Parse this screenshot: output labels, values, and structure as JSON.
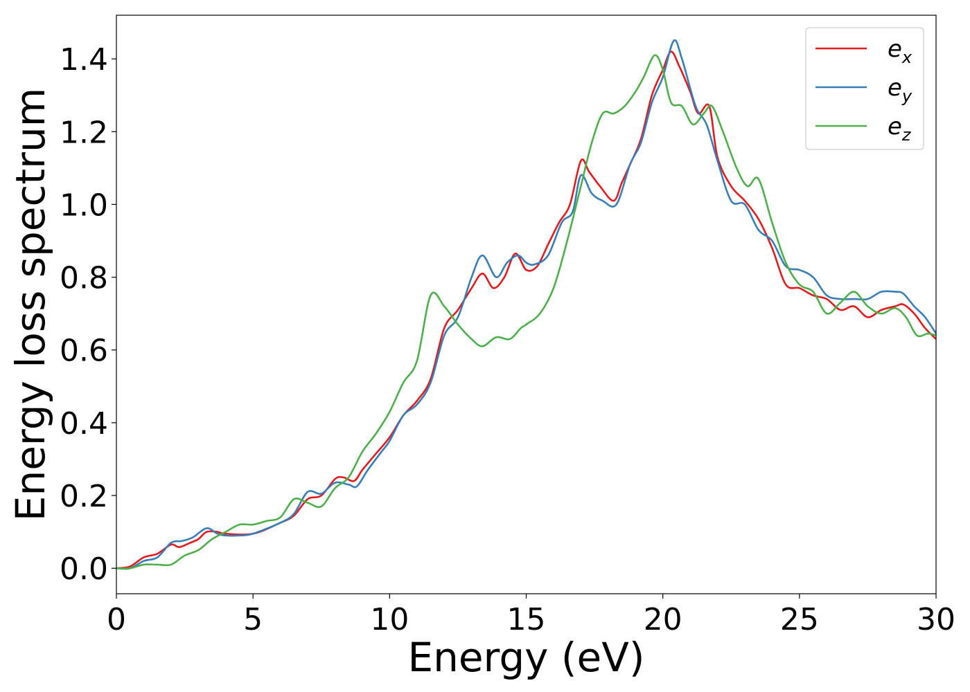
{
  "chart_data": {
    "type": "line",
    "title": "",
    "xlabel": "Energy (eV)",
    "ylabel": "Energy loss spectrum",
    "xlim": [
      0,
      30
    ],
    "ylim": [
      -0.07,
      1.52
    ],
    "xticks": [
      0,
      5,
      10,
      15,
      20,
      25,
      30
    ],
    "yticks": [
      0.0,
      0.2,
      0.4,
      0.6,
      0.8,
      1.0,
      1.2,
      1.4
    ],
    "xtick_labels": [
      "0",
      "5",
      "10",
      "15",
      "20",
      "25",
      "30"
    ],
    "ytick_labels": [
      "0.0",
      "0.2",
      "0.4",
      "0.6",
      "0.8",
      "1.0",
      "1.2",
      "1.4"
    ],
    "grid": false,
    "legend": {
      "placement": "top-right"
    },
    "series": [
      {
        "name": "e_x",
        "label_base": "e",
        "label_sub": "x",
        "color": "#e41a1c",
        "points": [
          [
            0,
            0.0
          ],
          [
            0.5,
            0.005
          ],
          [
            1.0,
            0.03
          ],
          [
            1.5,
            0.04
          ],
          [
            2.0,
            0.065
          ],
          [
            2.3,
            0.058
          ],
          [
            2.7,
            0.07
          ],
          [
            3.0,
            0.08
          ],
          [
            3.3,
            0.1
          ],
          [
            3.7,
            0.1
          ],
          [
            4.0,
            0.095
          ],
          [
            5,
            0.095
          ],
          [
            6,
            0.125
          ],
          [
            6.5,
            0.145
          ],
          [
            7.0,
            0.19
          ],
          [
            7.5,
            0.2
          ],
          [
            8.0,
            0.245
          ],
          [
            8.3,
            0.25
          ],
          [
            8.7,
            0.24
          ],
          [
            9.0,
            0.27
          ],
          [
            9.5,
            0.315
          ],
          [
            10,
            0.36
          ],
          [
            10.5,
            0.42
          ],
          [
            11.0,
            0.46
          ],
          [
            11.5,
            0.52
          ],
          [
            12.0,
            0.66
          ],
          [
            12.5,
            0.71
          ],
          [
            13.0,
            0.77
          ],
          [
            13.4,
            0.81
          ],
          [
            13.8,
            0.77
          ],
          [
            14.2,
            0.8
          ],
          [
            14.6,
            0.865
          ],
          [
            15,
            0.82
          ],
          [
            15.4,
            0.83
          ],
          [
            15.8,
            0.89
          ],
          [
            16.2,
            0.95
          ],
          [
            16.6,
            1.0
          ],
          [
            17.0,
            1.12
          ],
          [
            17.3,
            1.09
          ],
          [
            17.7,
            1.05
          ],
          [
            18.2,
            1.01
          ],
          [
            18.5,
            1.06
          ],
          [
            18.8,
            1.11
          ],
          [
            19.2,
            1.18
          ],
          [
            19.6,
            1.3
          ],
          [
            20.0,
            1.37
          ],
          [
            20.3,
            1.42
          ],
          [
            20.6,
            1.38
          ],
          [
            21.0,
            1.31
          ],
          [
            21.3,
            1.25
          ],
          [
            21.7,
            1.27
          ],
          [
            22.0,
            1.13
          ],
          [
            22.5,
            1.05
          ],
          [
            23.0,
            1.01
          ],
          [
            23.5,
            0.96
          ],
          [
            24.0,
            0.88
          ],
          [
            24.5,
            0.78
          ],
          [
            25.0,
            0.77
          ],
          [
            25.5,
            0.75
          ],
          [
            26.0,
            0.74
          ],
          [
            26.5,
            0.71
          ],
          [
            27.0,
            0.72
          ],
          [
            27.5,
            0.69
          ],
          [
            28.0,
            0.71
          ],
          [
            28.5,
            0.72
          ],
          [
            28.8,
            0.725
          ],
          [
            29.2,
            0.7
          ],
          [
            29.6,
            0.66
          ],
          [
            30.0,
            0.63
          ]
        ]
      },
      {
        "name": "e_y",
        "label_base": "e",
        "label_sub": "y",
        "color": "#377eb8",
        "points": [
          [
            0,
            0.0
          ],
          [
            0.5,
            0.0
          ],
          [
            1.0,
            0.02
          ],
          [
            1.5,
            0.03
          ],
          [
            2.0,
            0.07
          ],
          [
            2.4,
            0.075
          ],
          [
            2.8,
            0.085
          ],
          [
            3.3,
            0.11
          ],
          [
            3.7,
            0.095
          ],
          [
            4.0,
            0.09
          ],
          [
            4.5,
            0.09
          ],
          [
            5,
            0.095
          ],
          [
            6,
            0.125
          ],
          [
            6.5,
            0.15
          ],
          [
            7.0,
            0.21
          ],
          [
            7.5,
            0.205
          ],
          [
            8.0,
            0.235
          ],
          [
            8.5,
            0.23
          ],
          [
            8.8,
            0.225
          ],
          [
            9.2,
            0.27
          ],
          [
            9.7,
            0.32
          ],
          [
            10,
            0.35
          ],
          [
            10.5,
            0.42
          ],
          [
            11.0,
            0.45
          ],
          [
            11.5,
            0.51
          ],
          [
            12.0,
            0.64
          ],
          [
            12.5,
            0.69
          ],
          [
            13.0,
            0.8
          ],
          [
            13.4,
            0.86
          ],
          [
            13.9,
            0.8
          ],
          [
            14.3,
            0.84
          ],
          [
            14.7,
            0.86
          ],
          [
            15,
            0.84
          ],
          [
            15.3,
            0.835
          ],
          [
            15.8,
            0.86
          ],
          [
            16.3,
            0.95
          ],
          [
            16.7,
            0.98
          ],
          [
            17.0,
            1.08
          ],
          [
            17.4,
            1.03
          ],
          [
            17.8,
            1.01
          ],
          [
            18.3,
            1.0
          ],
          [
            18.8,
            1.11
          ],
          [
            19.2,
            1.17
          ],
          [
            19.6,
            1.28
          ],
          [
            20.0,
            1.35
          ],
          [
            20.4,
            1.45
          ],
          [
            20.7,
            1.4
          ],
          [
            21.2,
            1.27
          ],
          [
            21.6,
            1.22
          ],
          [
            22.0,
            1.12
          ],
          [
            22.5,
            1.01
          ],
          [
            23.0,
            1.0
          ],
          [
            23.5,
            0.93
          ],
          [
            24.0,
            0.9
          ],
          [
            24.5,
            0.83
          ],
          [
            25.0,
            0.82
          ],
          [
            25.5,
            0.8
          ],
          [
            26.0,
            0.75
          ],
          [
            26.5,
            0.74
          ],
          [
            27.0,
            0.74
          ],
          [
            27.5,
            0.74
          ],
          [
            28.0,
            0.76
          ],
          [
            28.5,
            0.76
          ],
          [
            28.8,
            0.755
          ],
          [
            29.2,
            0.72
          ],
          [
            29.6,
            0.69
          ],
          [
            30.0,
            0.645
          ]
        ]
      },
      {
        "name": "e_z",
        "label_base": "e",
        "label_sub": "z",
        "color": "#4daf4a",
        "points": [
          [
            0,
            0.0
          ],
          [
            0.5,
            0.0
          ],
          [
            1.0,
            0.01
          ],
          [
            1.5,
            0.01
          ],
          [
            2.0,
            0.01
          ],
          [
            2.5,
            0.035
          ],
          [
            3.0,
            0.05
          ],
          [
            3.5,
            0.08
          ],
          [
            4.0,
            0.1
          ],
          [
            4.5,
            0.12
          ],
          [
            5,
            0.12
          ],
          [
            5.5,
            0.13
          ],
          [
            6.0,
            0.14
          ],
          [
            6.5,
            0.19
          ],
          [
            7.0,
            0.18
          ],
          [
            7.5,
            0.17
          ],
          [
            8.0,
            0.22
          ],
          [
            8.5,
            0.25
          ],
          [
            9.0,
            0.32
          ],
          [
            9.5,
            0.37
          ],
          [
            10,
            0.43
          ],
          [
            10.5,
            0.51
          ],
          [
            11.0,
            0.57
          ],
          [
            11.5,
            0.75
          ],
          [
            12.0,
            0.72
          ],
          [
            12.5,
            0.67
          ],
          [
            13.0,
            0.63
          ],
          [
            13.4,
            0.61
          ],
          [
            13.9,
            0.635
          ],
          [
            14.4,
            0.63
          ],
          [
            14.8,
            0.66
          ],
          [
            15,
            0.67
          ],
          [
            15.5,
            0.7
          ],
          [
            16.0,
            0.77
          ],
          [
            16.5,
            0.9
          ],
          [
            17.0,
            1.05
          ],
          [
            17.4,
            1.17
          ],
          [
            17.8,
            1.25
          ],
          [
            18.2,
            1.25
          ],
          [
            18.6,
            1.27
          ],
          [
            19.0,
            1.31
          ],
          [
            19.3,
            1.35
          ],
          [
            19.7,
            1.41
          ],
          [
            20.0,
            1.37
          ],
          [
            20.3,
            1.28
          ],
          [
            20.7,
            1.27
          ],
          [
            21.1,
            1.22
          ],
          [
            21.5,
            1.25
          ],
          [
            21.8,
            1.27
          ],
          [
            22.2,
            1.2
          ],
          [
            22.7,
            1.1
          ],
          [
            23.1,
            1.05
          ],
          [
            23.5,
            1.07
          ],
          [
            24.0,
            0.95
          ],
          [
            24.5,
            0.84
          ],
          [
            25.0,
            0.78
          ],
          [
            25.5,
            0.76
          ],
          [
            26.0,
            0.7
          ],
          [
            26.5,
            0.73
          ],
          [
            27.0,
            0.76
          ],
          [
            27.5,
            0.72
          ],
          [
            28.0,
            0.7
          ],
          [
            28.5,
            0.715
          ],
          [
            28.9,
            0.69
          ],
          [
            29.3,
            0.64
          ],
          [
            29.7,
            0.645
          ],
          [
            30.0,
            0.64
          ]
        ]
      }
    ]
  }
}
